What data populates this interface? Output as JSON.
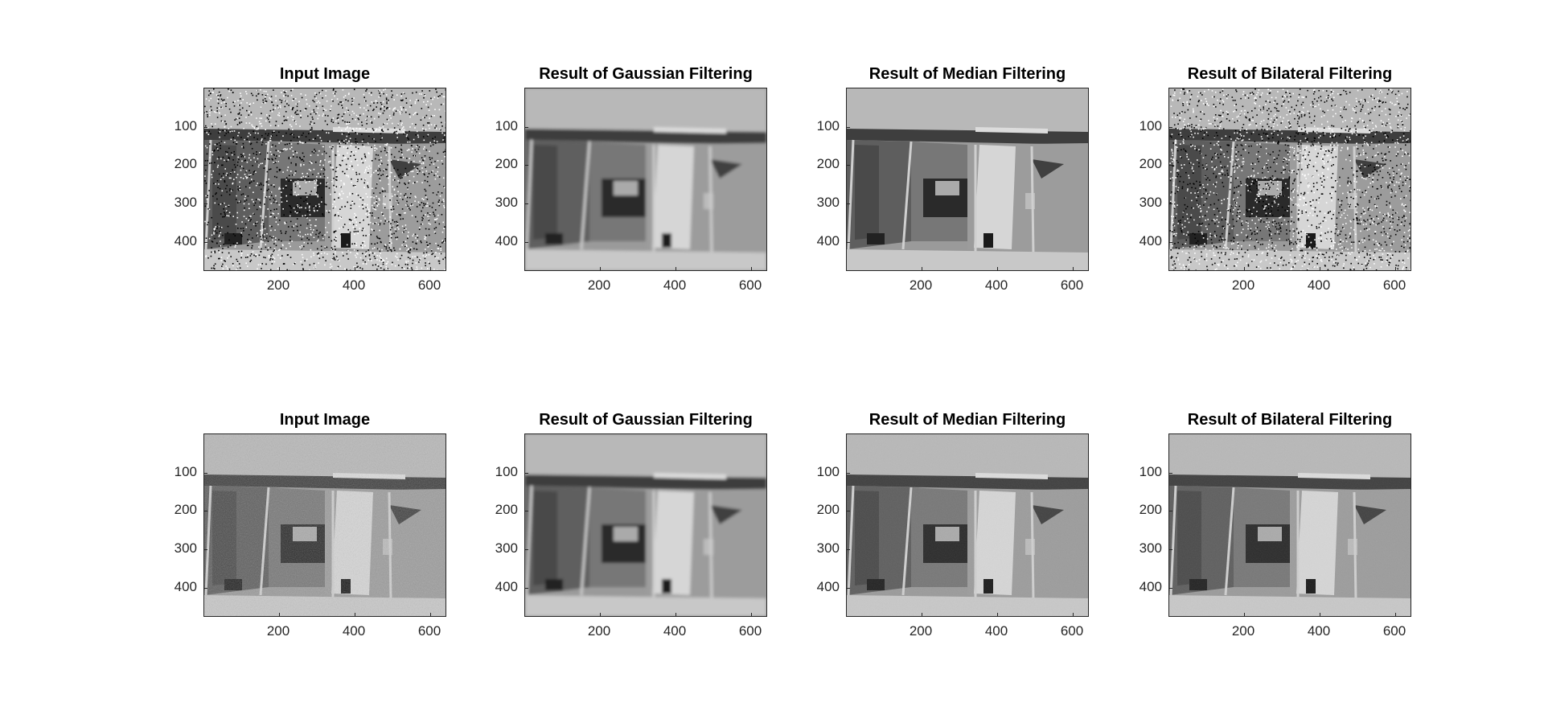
{
  "figure": {
    "rows": [
      {
        "noise": "salt-and-pepper",
        "panels": [
          {
            "title": "Input Image",
            "variant": "sp-noisy",
            "yticks": [
              "100",
              "200",
              "300",
              "400"
            ],
            "xticks": [
              "200",
              "400",
              "600"
            ]
          },
          {
            "title": "Result of Gaussian Filtering",
            "variant": "blurred",
            "yticks": [
              "100",
              "200",
              "300",
              "400"
            ],
            "xticks": [
              "200",
              "400",
              "600"
            ]
          },
          {
            "title": "Result of Median Filtering",
            "variant": "clean",
            "yticks": [
              "100",
              "200",
              "300",
              "400"
            ],
            "xticks": [
              "200",
              "400",
              "600"
            ]
          },
          {
            "title": "Result of Bilateral Filtering",
            "variant": "sp-noisy",
            "yticks": [
              "100",
              "200",
              "300",
              "400"
            ],
            "xticks": [
              "200",
              "400",
              "600"
            ]
          }
        ]
      },
      {
        "noise": "gaussian",
        "panels": [
          {
            "title": "Input Image",
            "variant": "grainy",
            "yticks": [
              "100",
              "200",
              "300",
              "400"
            ],
            "xticks": [
              "200",
              "400",
              "600"
            ]
          },
          {
            "title": "Result of Gaussian Filtering",
            "variant": "blurred",
            "yticks": [
              "100",
              "200",
              "300",
              "400"
            ],
            "xticks": [
              "200",
              "400",
              "600"
            ]
          },
          {
            "title": "Result of Median Filtering",
            "variant": "grainy-light",
            "yticks": [
              "100",
              "200",
              "300",
              "400"
            ],
            "xticks": [
              "200",
              "400",
              "600"
            ]
          },
          {
            "title": "Result of Bilateral Filtering",
            "variant": "grainy-light",
            "yticks": [
              "100",
              "200",
              "300",
              "400"
            ],
            "xticks": [
              "200",
              "400",
              "600"
            ]
          }
        ]
      }
    ]
  }
}
